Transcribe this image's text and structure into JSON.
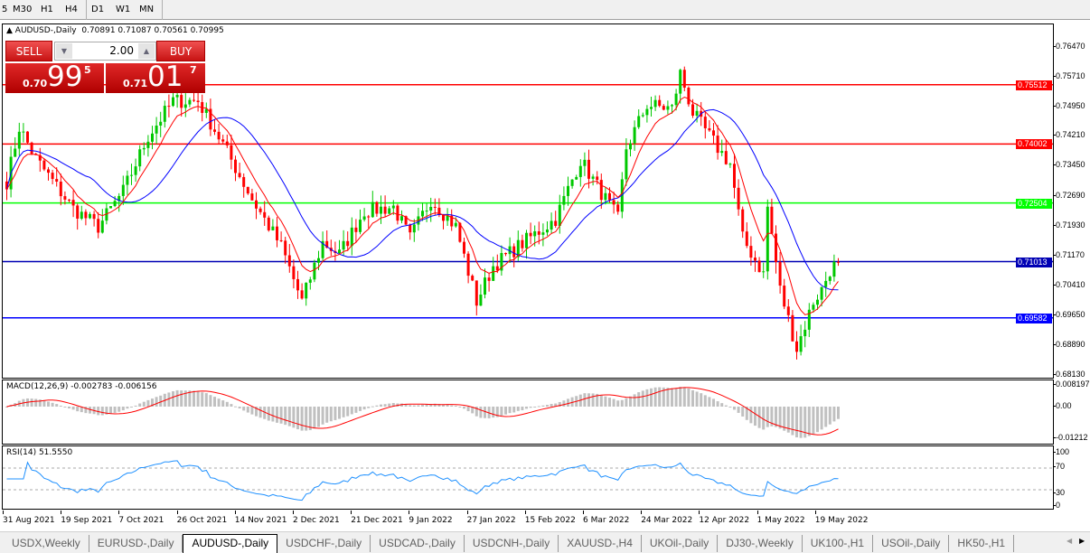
{
  "toolbar": {
    "timeframes": [
      "5",
      "M30",
      "H1",
      "H4",
      "D1",
      "W1",
      "MN"
    ],
    "selected": "D1"
  },
  "chart": {
    "symbol_line": "AUDUSD-,Daily",
    "ohlc": "0.70891 0.71087 0.70561 0.70995",
    "price_ticks": [
      "0.76470",
      "0.75710",
      "0.74950",
      "0.74210",
      "0.73450",
      "0.72690",
      "0.71930",
      "0.71170",
      "0.70410",
      "0.69650",
      "0.68890",
      "0.68130"
    ],
    "price_range": [
      0.6813,
      0.7647
    ],
    "levels": [
      {
        "price": "0.75512",
        "color": "#ff0000",
        "text_color": "#ffffff"
      },
      {
        "price": "0.74002",
        "color": "#ff0000",
        "text_color": "#ffffff"
      },
      {
        "price": "0.72504",
        "color": "#00ff00",
        "text_color": "#ffffff"
      },
      {
        "price": "0.71013",
        "color": "#0000b4",
        "text_color": "#ffffff"
      },
      {
        "price": "0.69582",
        "color": "#0000ff",
        "text_color": "#ffffff"
      }
    ],
    "close_path": [
      [
        0,
        0.7305
      ],
      [
        3,
        0.7443
      ],
      [
        7,
        0.7362
      ],
      [
        16,
        0.7236
      ],
      [
        22,
        0.719
      ],
      [
        28,
        0.728
      ],
      [
        34,
        0.742
      ],
      [
        40,
        0.751
      ],
      [
        46,
        0.751
      ],
      [
        52,
        0.74
      ],
      [
        59,
        0.726
      ],
      [
        66,
        0.714
      ],
      [
        71,
        0.7
      ],
      [
        76,
        0.715
      ],
      [
        80,
        0.712
      ],
      [
        86,
        0.723
      ],
      [
        93,
        0.724
      ],
      [
        97,
        0.716
      ],
      [
        102,
        0.726
      ],
      [
        108,
        0.719
      ],
      [
        113,
        0.7
      ],
      [
        117,
        0.709
      ],
      [
        123,
        0.714
      ],
      [
        132,
        0.721
      ],
      [
        138,
        0.736
      ],
      [
        147,
        0.721
      ],
      [
        149,
        0.739
      ],
      [
        154,
        0.75
      ],
      [
        160,
        0.749
      ],
      [
        162,
        0.758
      ],
      [
        165,
        0.748
      ],
      [
        171,
        0.739
      ],
      [
        174,
        0.735
      ],
      [
        177,
        0.716
      ],
      [
        182,
        0.707
      ],
      [
        183,
        0.724
      ],
      [
        186,
        0.703
      ],
      [
        190,
        0.688
      ],
      [
        194,
        0.7
      ],
      [
        196,
        0.703
      ],
      [
        198,
        0.708
      ],
      [
        200,
        0.70995
      ]
    ],
    "ma_colors": {
      "fast": "#ff0000",
      "slow": "#0000ff"
    },
    "up_color": "#00c800",
    "down_color": "#ff0000",
    "x_labels": [
      "31 Aug 2021",
      "19 Sep 2021",
      "7 Oct 2021",
      "26 Oct 2021",
      "14 Nov 2021",
      "2 Dec 2021",
      "21 Dec 2021",
      "9 Jan 2022",
      "27 Jan 2022",
      "15 Feb 2022",
      "6 Mar 2022",
      "24 Mar 2022",
      "12 Apr 2022",
      "1 May 2022",
      "19 May 2022"
    ]
  },
  "trade": {
    "sell_label": "SELL",
    "buy_label": "BUY",
    "volume": "2.00",
    "sell_prefix": "0.70",
    "sell_big": "99",
    "sell_sup": "5",
    "buy_prefix": "0.71",
    "buy_big": "01",
    "buy_sup": "7"
  },
  "macd": {
    "title": "MACD(12,26,9) -0.002783 -0.006156",
    "ticks": [
      "0.008197",
      "0.00",
      "-0.01212"
    ],
    "hist_color": "#c0c0c0",
    "signal_color": "#ff0000"
  },
  "rsi": {
    "title": "RSI(14) 51.5550",
    "ticks": [
      "100",
      "70",
      "30",
      "0"
    ],
    "color": "#1e90ff"
  },
  "tabs": [
    {
      "label": "USDX,Weekly"
    },
    {
      "label": "EURUSD-,Daily"
    },
    {
      "label": "AUDUSD-,Daily",
      "active": true
    },
    {
      "label": "USDCHF-,Daily"
    },
    {
      "label": "USDCAD-,Daily"
    },
    {
      "label": "USDCNH-,Daily"
    },
    {
      "label": "XAUUSD-,H4"
    },
    {
      "label": "UKOil-,Daily"
    },
    {
      "label": "DJ30-,Weekly"
    },
    {
      "label": "UK100-,H1"
    },
    {
      "label": "USOil-,Daily"
    },
    {
      "label": "HK50-,H1"
    }
  ]
}
